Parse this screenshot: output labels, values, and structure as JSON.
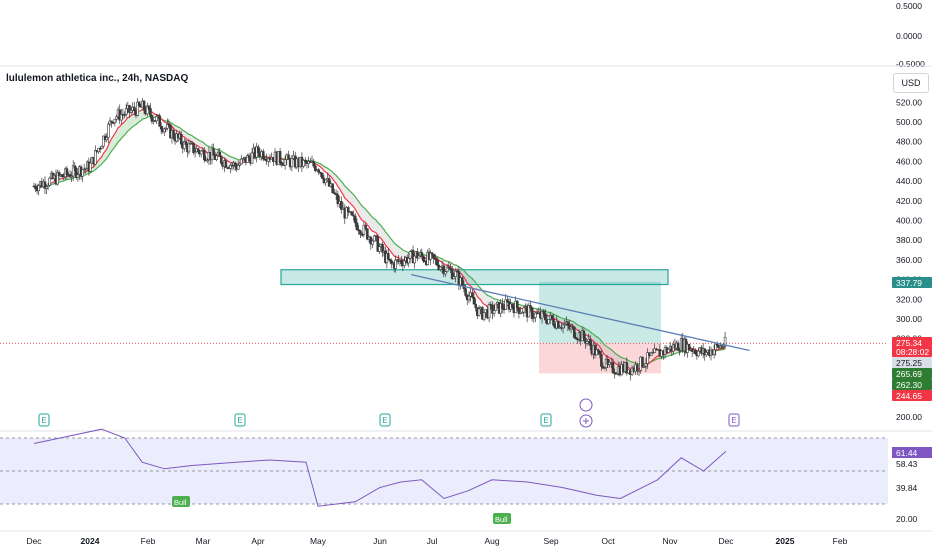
{
  "symbol_title": "lululemon athletica inc., 24h, NASDAQ",
  "currency_button": "USD",
  "top_scale_labels": [
    "0.5000",
    "0.0000",
    "-0.5000"
  ],
  "colors": {
    "up": "#089981",
    "down": "#f23645",
    "ema_fast": "#f23645",
    "ema_slow": "#4caf50",
    "trendline": "#5b7fb5",
    "zone": "#26a69a",
    "rsi_line": "#7e57c2",
    "rsi_band": "#e3e6fb"
  },
  "earnings_marker_label": "E",
  "price_tags": [
    {
      "value": "337.79",
      "color": "#2a8f8a"
    },
    {
      "value": "275.34",
      "color": "#f23645"
    },
    {
      "value": "08:28:02",
      "color": "#f23645"
    },
    {
      "value": "275.25",
      "color": "#d9dfe7"
    },
    {
      "value": "265.69",
      "color": "#2e7d32"
    },
    {
      "value": "262.30",
      "color": "#2e7d32"
    },
    {
      "value": "244.65",
      "color": "#f23645"
    }
  ],
  "rsi_tags": [
    "61.44",
    "58.43",
    "39.84",
    "20.00"
  ],
  "rsi_signals": [
    "Bull",
    "Bull"
  ],
  "chart_data": {
    "type": "candlestick",
    "title": "lululemon athletica inc., 24h, NASDAQ",
    "x_labels": [
      "Dec",
      "2024",
      "Feb",
      "Mar",
      "Apr",
      "May",
      "Jun",
      "Jul",
      "Aug",
      "Sep",
      "Oct",
      "Nov",
      "Dec",
      "2025",
      "Feb"
    ],
    "y_ticks": [
      520,
      500,
      480,
      460,
      440,
      420,
      400,
      380,
      360,
      340,
      320,
      300,
      280,
      200
    ],
    "ylim": [
      200,
      520
    ],
    "close_path": [
      [
        0,
        435
      ],
      [
        0.5,
        445
      ],
      [
        1,
        455
      ],
      [
        1.4,
        505
      ],
      [
        1.9,
        515
      ],
      [
        2.3,
        495
      ],
      [
        2.7,
        475
      ],
      [
        3.2,
        465
      ],
      [
        3.6,
        455
      ],
      [
        4.0,
        470
      ],
      [
        4.5,
        460
      ],
      [
        5.0,
        455
      ],
      [
        5.4,
        410
      ],
      [
        5.9,
        380
      ],
      [
        6.2,
        355
      ],
      [
        6.7,
        365
      ],
      [
        7.0,
        360
      ],
      [
        7.4,
        345
      ],
      [
        7.8,
        305
      ],
      [
        8.3,
        315
      ],
      [
        8.7,
        305
      ],
      [
        9.2,
        295
      ],
      [
        9.6,
        280
      ],
      [
        10.0,
        250
      ],
      [
        10.4,
        250
      ],
      [
        10.8,
        265
      ],
      [
        11.2,
        275
      ],
      [
        11.6,
        265
      ],
      [
        12.0,
        275
      ]
    ],
    "resistance_zone": [
      335,
      350
    ],
    "trendline": {
      "from": [
        6.6,
        345
      ],
      "to": [
        12.4,
        268
      ]
    },
    "position": {
      "entry": 275.3,
      "target": 337.8,
      "stop": 244.7
    },
    "rsi": {
      "upper": 80,
      "mid": 50,
      "lower": 20,
      "values": [
        [
          0,
          75
        ],
        [
          1.2,
          88
        ],
        [
          1.6,
          80
        ],
        [
          1.9,
          58
        ],
        [
          2.3,
          52
        ],
        [
          2.8,
          55
        ],
        [
          3.6,
          58
        ],
        [
          4.2,
          60
        ],
        [
          4.8,
          58
        ],
        [
          5.0,
          18
        ],
        [
          5.6,
          22
        ],
        [
          6.0,
          35
        ],
        [
          6.4,
          40
        ],
        [
          6.8,
          42
        ],
        [
          7.2,
          25
        ],
        [
          7.6,
          32
        ],
        [
          8.0,
          42
        ],
        [
          8.6,
          40
        ],
        [
          9.2,
          35
        ],
        [
          9.8,
          28
        ],
        [
          10.2,
          25
        ],
        [
          10.8,
          42
        ],
        [
          11.2,
          62
        ],
        [
          11.6,
          50
        ],
        [
          12.0,
          68
        ]
      ]
    }
  }
}
